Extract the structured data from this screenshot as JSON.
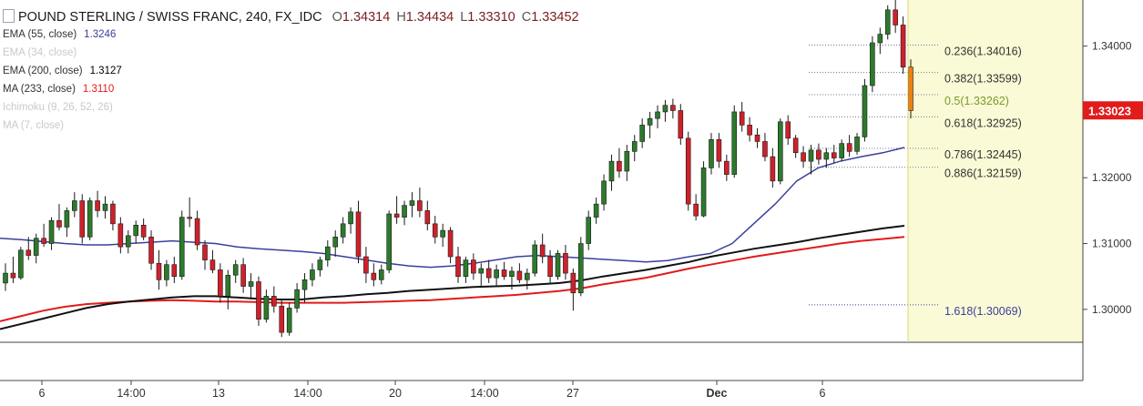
{
  "header": {
    "symbol_title": "POUND STERLING / SWISS FRANC, 240, FX_IDC",
    "ohlc": [
      {
        "k": "O",
        "v": "1.34314"
      },
      {
        "k": "H",
        "v": "1.34434"
      },
      {
        "k": "L",
        "v": "1.33310"
      },
      {
        "k": "C",
        "v": "1.33452"
      }
    ]
  },
  "indicators": [
    {
      "label": "EMA (55, close)",
      "value": "1.3246",
      "color": "#3a3f9a",
      "faded": false
    },
    {
      "label": "EMA (34, close)",
      "value": "",
      "color": "#c9c9c9",
      "faded": true
    },
    {
      "label": "EMA (200, close)",
      "value": "1.3127",
      "color": "#000000",
      "faded": false
    },
    {
      "label": "MA (233, close)",
      "value": "1.3110",
      "color": "#e21b1b",
      "faded": false
    },
    {
      "label": "Ichimoku (9, 26, 52, 26)",
      "value": "",
      "color": "#c9c9c9",
      "faded": true
    },
    {
      "label": "MA (7, close)",
      "value": "",
      "color": "#c9c9c9",
      "faded": true
    }
  ],
  "colors": {
    "up": "#2c7a2c",
    "down": "#d0202a",
    "last_candle": "#f0800d",
    "ema55": "#3a3f9a",
    "ema200": "#111111",
    "ma233": "#e21b1b",
    "fib_line": "#6c7898",
    "fib_label": "#333333",
    "fib_highlight": "#7a9a2a",
    "fib_ext": "#3a3f9a",
    "price_badge": "#e21b1b",
    "future_zone": "#fafad6"
  },
  "chart_data": {
    "type": "candlestick",
    "y_axis_ticks": [
      "1.34000",
      "1.32000",
      "1.31000",
      "1.30000"
    ],
    "ylim": [
      1.295,
      1.347
    ],
    "x_axis_ticks": [
      "6",
      "14:00",
      "13",
      "14:00",
      "20",
      "14:00",
      "27",
      "Dec",
      "6"
    ],
    "last_price": "1.33023",
    "fibonacci": [
      {
        "label": "0.236(1.34016)",
        "value": 1.34016
      },
      {
        "label": "0.382(1.33599)",
        "value": 1.33599
      },
      {
        "label": "0.5(1.33262)",
        "value": 1.33262
      },
      {
        "label": "0.618(1.32925)",
        "value": 1.32925
      },
      {
        "label": "0.786(1.32445)",
        "value": 1.32445
      },
      {
        "label": "0.886(1.32159)",
        "value": 1.32159
      },
      {
        "label": "1.618(1.30069)",
        "value": 1.30069
      }
    ],
    "candles": [
      [
        1.304,
        1.307,
        1.3028,
        1.3055
      ],
      [
        1.3055,
        1.308,
        1.304,
        1.3048
      ],
      [
        1.3048,
        1.3095,
        1.3045,
        1.309
      ],
      [
        1.309,
        1.311,
        1.3075,
        1.3082
      ],
      [
        1.3082,
        1.3115,
        1.307,
        1.3108
      ],
      [
        1.3108,
        1.313,
        1.3095,
        1.31
      ],
      [
        1.31,
        1.314,
        1.309,
        1.3135
      ],
      [
        1.3135,
        1.316,
        1.312,
        1.3125
      ],
      [
        1.3125,
        1.3155,
        1.311,
        1.315
      ],
      [
        1.315,
        1.3178,
        1.314,
        1.3165
      ],
      [
        1.3165,
        1.3175,
        1.31,
        1.311
      ],
      [
        1.311,
        1.317,
        1.3105,
        1.3165
      ],
      [
        1.3165,
        1.318,
        1.314,
        1.315
      ],
      [
        1.315,
        1.3172,
        1.3138,
        1.316
      ],
      [
        1.316,
        1.3165,
        1.312,
        1.313
      ],
      [
        1.313,
        1.314,
        1.3085,
        1.3095
      ],
      [
        1.3095,
        1.312,
        1.3085,
        1.3112
      ],
      [
        1.3112,
        1.3135,
        1.31,
        1.3128
      ],
      [
        1.3128,
        1.3138,
        1.3105,
        1.311
      ],
      [
        1.311,
        1.312,
        1.306,
        1.307
      ],
      [
        1.307,
        1.309,
        1.303,
        1.3045
      ],
      [
        1.3045,
        1.3075,
        1.3035,
        1.3068
      ],
      [
        1.3068,
        1.308,
        1.304,
        1.305
      ],
      [
        1.305,
        1.315,
        1.3045,
        1.314
      ],
      [
        1.314,
        1.317,
        1.3125,
        1.3138
      ],
      [
        1.3138,
        1.315,
        1.309,
        1.3098
      ],
      [
        1.3098,
        1.3105,
        1.306,
        1.3075
      ],
      [
        1.3075,
        1.309,
        1.3055,
        1.306
      ],
      [
        1.306,
        1.307,
        1.301,
        1.302
      ],
      [
        1.302,
        1.306,
        1.3,
        1.3052
      ],
      [
        1.3052,
        1.3075,
        1.304,
        1.3068
      ],
      [
        1.3068,
        1.3078,
        1.3025,
        1.3035
      ],
      [
        1.3035,
        1.3055,
        1.3015,
        1.3042
      ],
      [
        1.3042,
        1.305,
        1.2975,
        1.2985
      ],
      [
        1.2985,
        1.303,
        1.298,
        1.302
      ],
      [
        1.302,
        1.3035,
        1.2995,
        1.3005
      ],
      [
        1.3005,
        1.3015,
        1.2958,
        1.2965
      ],
      [
        1.2965,
        1.301,
        1.296,
        1.3002
      ],
      [
        1.3002,
        1.304,
        1.2995,
        1.303
      ],
      [
        1.303,
        1.3055,
        1.301,
        1.3045
      ],
      [
        1.3045,
        1.307,
        1.3035,
        1.306
      ],
      [
        1.306,
        1.308,
        1.305,
        1.3075
      ],
      [
        1.3075,
        1.3105,
        1.3065,
        1.3095
      ],
      [
        1.3095,
        1.312,
        1.308,
        1.311
      ],
      [
        1.311,
        1.314,
        1.31,
        1.313
      ],
      [
        1.313,
        1.3155,
        1.3115,
        1.3148
      ],
      [
        1.3148,
        1.3165,
        1.307,
        1.308
      ],
      [
        1.308,
        1.3095,
        1.304,
        1.3055
      ],
      [
        1.3055,
        1.307,
        1.3035,
        1.3045
      ],
      [
        1.3045,
        1.3068,
        1.3038,
        1.306
      ],
      [
        1.306,
        1.315,
        1.3055,
        1.3145
      ],
      [
        1.3145,
        1.3172,
        1.313,
        1.314
      ],
      [
        1.314,
        1.3165,
        1.3128,
        1.3158
      ],
      [
        1.3158,
        1.3178,
        1.314,
        1.3165
      ],
      [
        1.3165,
        1.3185,
        1.314,
        1.315
      ],
      [
        1.315,
        1.3165,
        1.312,
        1.313
      ],
      [
        1.313,
        1.3142,
        1.31,
        1.311
      ],
      [
        1.311,
        1.313,
        1.3095,
        1.312
      ],
      [
        1.312,
        1.3125,
        1.307,
        1.308
      ],
      [
        1.308,
        1.3095,
        1.304,
        1.305
      ],
      [
        1.305,
        1.308,
        1.304,
        1.3075
      ],
      [
        1.3075,
        1.3085,
        1.3045,
        1.3055
      ],
      [
        1.3055,
        1.307,
        1.3035,
        1.3062
      ],
      [
        1.3062,
        1.3075,
        1.304,
        1.3048
      ],
      [
        1.3048,
        1.3068,
        1.3035,
        1.306
      ],
      [
        1.306,
        1.3072,
        1.3045,
        1.305
      ],
      [
        1.305,
        1.3065,
        1.303,
        1.3058
      ],
      [
        1.3058,
        1.307,
        1.304,
        1.3045
      ],
      [
        1.3045,
        1.3062,
        1.303,
        1.3055
      ],
      [
        1.3055,
        1.3105,
        1.305,
        1.3098
      ],
      [
        1.3098,
        1.3115,
        1.307,
        1.308
      ],
      [
        1.308,
        1.309,
        1.304,
        1.305
      ],
      [
        1.305,
        1.309,
        1.3045,
        1.3085
      ],
      [
        1.3085,
        1.3098,
        1.3045,
        1.3055
      ],
      [
        1.3055,
        1.3062,
        1.2998,
        1.3025
      ],
      [
        1.3025,
        1.311,
        1.302,
        1.31
      ],
      [
        1.31,
        1.315,
        1.309,
        1.314
      ],
      [
        1.314,
        1.317,
        1.313,
        1.316
      ],
      [
        1.316,
        1.3205,
        1.315,
        1.3195
      ],
      [
        1.3195,
        1.3235,
        1.318,
        1.3225
      ],
      [
        1.3225,
        1.3245,
        1.32,
        1.321
      ],
      [
        1.321,
        1.325,
        1.3195,
        1.324
      ],
      [
        1.324,
        1.3265,
        1.3225,
        1.3255
      ],
      [
        1.3255,
        1.329,
        1.3245,
        1.328
      ],
      [
        1.328,
        1.33,
        1.326,
        1.329
      ],
      [
        1.329,
        1.331,
        1.3275,
        1.33
      ],
      [
        1.33,
        1.3318,
        1.3285,
        1.331
      ],
      [
        1.331,
        1.332,
        1.329,
        1.3302
      ],
      [
        1.3302,
        1.3312,
        1.325,
        1.326
      ],
      [
        1.326,
        1.327,
        1.315,
        1.316
      ],
      [
        1.316,
        1.3175,
        1.3135,
        1.3142
      ],
      [
        1.3142,
        1.3225,
        1.314,
        1.3215
      ],
      [
        1.3215,
        1.3268,
        1.3205,
        1.3258
      ],
      [
        1.3258,
        1.3268,
        1.3215,
        1.3225
      ],
      [
        1.3225,
        1.3235,
        1.3195,
        1.3205
      ],
      [
        1.3205,
        1.331,
        1.32,
        1.33
      ],
      [
        1.33,
        1.3315,
        1.327,
        1.328
      ],
      [
        1.328,
        1.3292,
        1.3255,
        1.3265
      ],
      [
        1.3265,
        1.3275,
        1.3245,
        1.3255
      ],
      [
        1.3255,
        1.3268,
        1.3225,
        1.3232
      ],
      [
        1.3232,
        1.3245,
        1.3185,
        1.3195
      ],
      [
        1.3195,
        1.329,
        1.319,
        1.3285
      ],
      [
        1.3285,
        1.3295,
        1.325,
        1.326
      ],
      [
        1.326,
        1.3265,
        1.323,
        1.3238
      ],
      [
        1.3238,
        1.3248,
        1.3215,
        1.3225
      ],
      [
        1.3225,
        1.325,
        1.3205,
        1.3242
      ],
      [
        1.3242,
        1.3252,
        1.322,
        1.3228
      ],
      [
        1.3228,
        1.3245,
        1.3215,
        1.3238
      ],
      [
        1.3238,
        1.325,
        1.3222,
        1.323
      ],
      [
        1.323,
        1.3258,
        1.3225,
        1.3252
      ],
      [
        1.3252,
        1.3265,
        1.3232,
        1.324
      ],
      [
        1.324,
        1.3268,
        1.3235,
        1.3262
      ],
      [
        1.3262,
        1.335,
        1.3255,
        1.334
      ],
      [
        1.334,
        1.3415,
        1.333,
        1.3405
      ],
      [
        1.3405,
        1.3428,
        1.3388,
        1.3418
      ],
      [
        1.3418,
        1.3462,
        1.341,
        1.3455
      ],
      [
        1.3455,
        1.347,
        1.342,
        1.3432
      ],
      [
        1.3432,
        1.3445,
        1.3358,
        1.3368
      ],
      [
        1.3368,
        1.338,
        1.329,
        1.3302
      ]
    ],
    "ema55": [
      1.3108,
      1.3106,
      1.3103,
      1.31,
      1.3098,
      1.3098,
      1.31,
      1.3102,
      1.3104,
      1.3102,
      1.31,
      1.3095,
      1.3092,
      1.309,
      1.3088,
      1.3085,
      1.308,
      1.3075,
      1.307,
      1.3066,
      1.3064,
      1.3066,
      1.307,
      1.3075,
      1.308,
      1.3082,
      1.308,
      1.3078,
      1.3076,
      1.3074,
      1.3072,
      1.3074,
      1.308,
      1.3085,
      1.31,
      1.313,
      1.316,
      1.3195,
      1.3215,
      1.3225,
      1.3232,
      1.3238,
      1.3246
    ],
    "ema200": [
      1.297,
      1.2978,
      1.2986,
      1.2994,
      1.3002,
      1.3008,
      1.3012,
      1.3015,
      1.3018,
      1.302,
      1.302,
      1.3018,
      1.3016,
      1.3015,
      1.3015,
      1.3018,
      1.302,
      1.3023,
      1.3025,
      1.3028,
      1.303,
      1.3032,
      1.3034,
      1.3035,
      1.3036,
      1.3038,
      1.304,
      1.3044,
      1.305,
      1.3055,
      1.306,
      1.3066,
      1.3072,
      1.308,
      1.3086,
      1.3092,
      1.3097,
      1.3102,
      1.3108,
      1.3113,
      1.3118,
      1.3123,
      1.3127
    ],
    "ma233": [
      1.2982,
      1.299,
      1.2998,
      1.3004,
      1.3008,
      1.301,
      1.3012,
      1.3013,
      1.3014,
      1.3013,
      1.3012,
      1.3012,
      1.3011,
      1.301,
      1.301,
      1.301,
      1.301,
      1.3011,
      1.3012,
      1.3013,
      1.3014,
      1.3016,
      1.3018,
      1.302,
      1.3022,
      1.3025,
      1.3028,
      1.3032,
      1.3038,
      1.3043,
      1.3048,
      1.3055,
      1.3062,
      1.3068,
      1.3074,
      1.308,
      1.3085,
      1.309,
      1.3095,
      1.31,
      1.3104,
      1.3107,
      1.311
    ]
  }
}
